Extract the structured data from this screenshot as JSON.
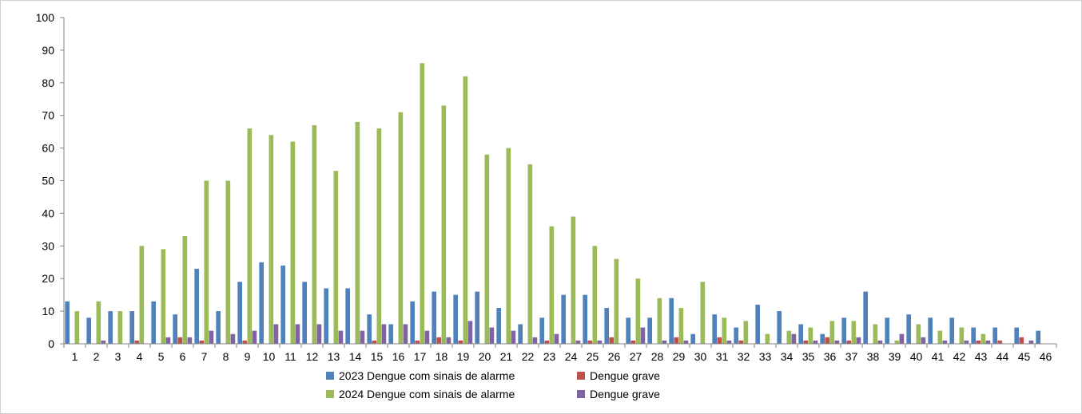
{
  "chart_data": {
    "type": "bar",
    "title": "",
    "xlabel": "",
    "ylabel": "",
    "ylim": [
      0,
      100
    ],
    "yticks": [
      0,
      10,
      20,
      30,
      40,
      50,
      60,
      70,
      80,
      90,
      100
    ],
    "grid": false,
    "legend_position": "bottom",
    "categories": [
      "1",
      "2",
      "3",
      "4",
      "5",
      "6",
      "7",
      "8",
      "9",
      "10",
      "11",
      "12",
      "13",
      "14",
      "15",
      "16",
      "17",
      "18",
      "19",
      "20",
      "21",
      "22",
      "23",
      "24",
      "25",
      "26",
      "27",
      "28",
      "29",
      "30",
      "31",
      "32",
      "33",
      "34",
      "35",
      "36",
      "37",
      "38",
      "39",
      "40",
      "41",
      "42",
      "43",
      "44",
      "45",
      "46"
    ],
    "series": [
      {
        "name": "2023 Dengue com sinais de alarme",
        "color": "#4F81BD",
        "values": [
          13,
          8,
          10,
          10,
          13,
          9,
          23,
          10,
          19,
          25,
          24,
          19,
          17,
          17,
          9,
          6,
          13,
          16,
          15,
          16,
          11,
          6,
          8,
          15,
          15,
          11,
          8,
          8,
          14,
          3,
          9,
          5,
          12,
          10,
          6,
          3,
          8,
          16,
          8,
          9,
          8,
          8,
          5,
          5,
          5,
          4
        ]
      },
      {
        "name": "Dengue grave",
        "color": "#C0504D",
        "values": [
          0,
          0,
          0,
          1,
          0,
          2,
          1,
          0,
          1,
          0,
          0,
          0,
          0,
          0,
          1,
          0,
          1,
          2,
          1,
          0,
          0,
          0,
          1,
          0,
          1,
          2,
          1,
          0,
          2,
          0,
          2,
          1,
          0,
          0,
          1,
          2,
          1,
          0,
          0,
          0,
          0,
          0,
          1,
          1,
          2,
          0
        ]
      },
      {
        "name": "2024 Dengue com sinais de alarme",
        "color": "#9BBB59",
        "values": [
          10,
          13,
          10,
          30,
          29,
          33,
          50,
          50,
          66,
          64,
          62,
          67,
          53,
          68,
          66,
          71,
          86,
          73,
          82,
          58,
          60,
          55,
          36,
          39,
          30,
          26,
          20,
          14,
          11,
          19,
          8,
          7,
          3,
          4,
          5,
          7,
          7,
          6,
          1,
          6,
          4,
          5,
          3,
          0,
          0,
          0
        ]
      },
      {
        "name": "Dengue grave",
        "color": "#8064A2",
        "values": [
          0,
          1,
          0,
          0,
          2,
          2,
          4,
          3,
          4,
          6,
          6,
          6,
          4,
          4,
          6,
          6,
          4,
          2,
          7,
          5,
          4,
          2,
          3,
          1,
          1,
          0,
          5,
          1,
          1,
          0,
          1,
          0,
          0,
          3,
          1,
          1,
          2,
          1,
          3,
          2,
          1,
          1,
          1,
          0,
          1,
          0
        ]
      }
    ]
  }
}
